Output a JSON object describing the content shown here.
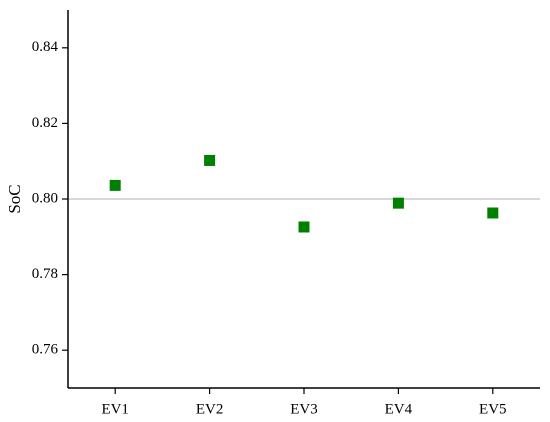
{
  "chart_data": {
    "type": "scatter",
    "y_label": "SoC",
    "categories": [
      "EV1",
      "EV2",
      "EV3",
      "EV4",
      "EV5"
    ],
    "values": [
      0.8036,
      0.8102,
      0.7926,
      0.7989,
      0.7963
    ],
    "color": "#008000",
    "ylim": [
      0.75,
      0.85
    ],
    "yticks": [
      0.76,
      0.78,
      {
        "value": 0.8,
        "label": "0.80"
      },
      0.82,
      0.84
    ],
    "reference_line": 0.8,
    "reference_line_color": "#b0b0b0"
  }
}
